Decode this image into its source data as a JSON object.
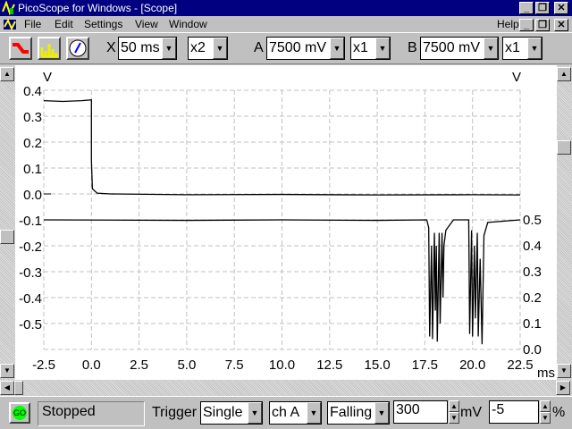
{
  "window": {
    "title": "PicoScope for Windows - [Scope]",
    "min": "_",
    "restore": "❐",
    "close": "✕"
  },
  "menu": {
    "items": [
      "File",
      "Edit",
      "Settings",
      "View",
      "Window"
    ],
    "help": "Help"
  },
  "toolbar": {
    "x_label": "X",
    "timebase": "50 ms",
    "x_mult": "x2",
    "a_label": "A",
    "a_range": "7500 mV",
    "a_mult": "x1",
    "b_label": "B",
    "b_range": "7500 mV",
    "b_mult": "x1"
  },
  "status": {
    "go": "GO",
    "state": "Stopped",
    "trigger_label": "Trigger",
    "trigger_mode": "Single",
    "trigger_channel": "ch A",
    "trigger_edge": "Falling",
    "trigger_level": "300",
    "level_unit": "mV",
    "pretrigger": "-5",
    "pretrigger_unit": "%"
  },
  "colors": {
    "titlebar": "#000080",
    "trace": "#000000",
    "grid": "#c0c0c0",
    "go": "#00ff00"
  },
  "chart_data": {
    "type": "line",
    "xlabel": "ms",
    "xlim": [
      -2.5,
      22.5
    ],
    "xticks": [
      "-2.5",
      "0.0",
      "2.5",
      "5.0",
      "7.5",
      "10.0",
      "12.5",
      "15.0",
      "17.5",
      "20.0",
      "22.5"
    ],
    "left_axis": {
      "unit": "V",
      "ylim": [
        -0.6,
        0.4
      ],
      "ticks": [
        "0.4",
        "0.3",
        "0.2",
        "0.1",
        "0.0",
        "-0.1",
        "-0.2",
        "-0.3",
        "-0.4",
        "-0.5"
      ]
    },
    "right_axis": {
      "unit": "V",
      "ylim": [
        0.0,
        1.0
      ],
      "ticks": [
        "0.5",
        "0.4",
        "0.3",
        "0.2",
        "0.1",
        "0.0"
      ]
    },
    "grid": true,
    "series": [
      {
        "axis": "left",
        "points": [
          [
            -2.5,
            0.36
          ],
          [
            -1.5,
            0.357
          ],
          [
            -0.5,
            0.36
          ],
          [
            0.0,
            0.363
          ],
          [
            0.0,
            0.13
          ],
          [
            0.05,
            0.02
          ],
          [
            0.3,
            0.003
          ],
          [
            1.0,
            0.0
          ],
          [
            5,
            -0.003
          ],
          [
            10,
            -0.002
          ],
          [
            15,
            -0.004
          ],
          [
            20,
            -0.003
          ],
          [
            22.5,
            -0.004
          ]
        ]
      },
      {
        "axis": "right",
        "points": [
          [
            -2.5,
            0.5
          ],
          [
            5,
            0.498
          ],
          [
            10,
            0.5
          ],
          [
            15,
            0.498
          ],
          [
            17.6,
            0.5
          ],
          [
            17.7,
            0.47
          ],
          [
            17.75,
            0.05
          ],
          [
            17.85,
            0.4
          ],
          [
            17.9,
            0.04
          ],
          [
            18.0,
            0.45
          ],
          [
            18.05,
            0.15
          ],
          [
            18.1,
            0.4
          ],
          [
            18.15,
            0.03
          ],
          [
            18.25,
            0.45
          ],
          [
            18.3,
            0.1
          ],
          [
            18.4,
            0.45
          ],
          [
            18.45,
            0.2
          ],
          [
            18.5,
            0.4
          ],
          [
            18.6,
            0.46
          ],
          [
            19.0,
            0.5
          ],
          [
            19.8,
            0.5
          ],
          [
            19.85,
            0.06
          ],
          [
            19.95,
            0.46
          ],
          [
            20.0,
            0.05
          ],
          [
            20.1,
            0.4
          ],
          [
            20.15,
            0.12
          ],
          [
            20.25,
            0.45
          ],
          [
            20.3,
            0.05
          ],
          [
            20.4,
            0.35
          ],
          [
            20.5,
            0.02
          ],
          [
            20.6,
            0.44
          ],
          [
            20.8,
            0.49
          ],
          [
            22.5,
            0.5
          ]
        ]
      }
    ]
  }
}
